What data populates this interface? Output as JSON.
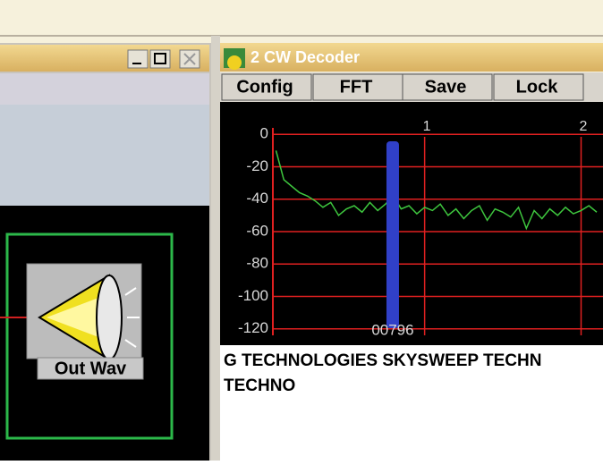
{
  "left_window": {
    "block_label": "Out Wav"
  },
  "decoder_window": {
    "title": "2 CW Decoder",
    "menu": [
      "Config",
      "FFT",
      "Save",
      "Lock"
    ],
    "decoded_text": [
      "G TECHNOLOGIES SKYSWEEP TECHN",
      "TECHNO"
    ]
  },
  "chart_data": {
    "type": "line",
    "x": [
      0.05,
      0.1,
      0.15,
      0.2,
      0.25,
      0.3,
      0.35,
      0.4,
      0.45,
      0.5,
      0.55,
      0.6,
      0.65,
      0.7,
      0.75,
      0.8,
      0.85,
      0.9,
      0.95,
      1.0,
      1.05,
      1.1,
      1.15,
      1.2,
      1.25,
      1.3,
      1.35,
      1.4,
      1.45,
      1.5,
      1.55,
      1.6,
      1.65,
      1.7,
      1.75,
      1.8,
      1.85,
      1.9,
      1.95,
      2.0,
      2.05,
      2.1
    ],
    "values": [
      -10,
      -28,
      -32,
      -36,
      -38,
      -41,
      -45,
      -42,
      -50,
      -46,
      -44,
      -48,
      -42,
      -47,
      -43,
      -38,
      -46,
      -44,
      -49,
      -45,
      -47,
      -43,
      -50,
      -46,
      -52,
      -47,
      -44,
      -53,
      -46,
      -48,
      -51,
      -45,
      -58,
      -47,
      -52,
      -46,
      -50,
      -45,
      -49,
      -47,
      -44,
      -48
    ],
    "color": "#3ec63e",
    "xlim": [
      0.03,
      2.14
    ],
    "ylim": [
      -124,
      4
    ],
    "xticks": [
      1,
      2
    ],
    "yticks": [
      0,
      -20,
      -40,
      -60,
      -80,
      -100,
      -120
    ],
    "grid": true,
    "marker": {
      "value": 0.796,
      "label": "00796"
    }
  }
}
